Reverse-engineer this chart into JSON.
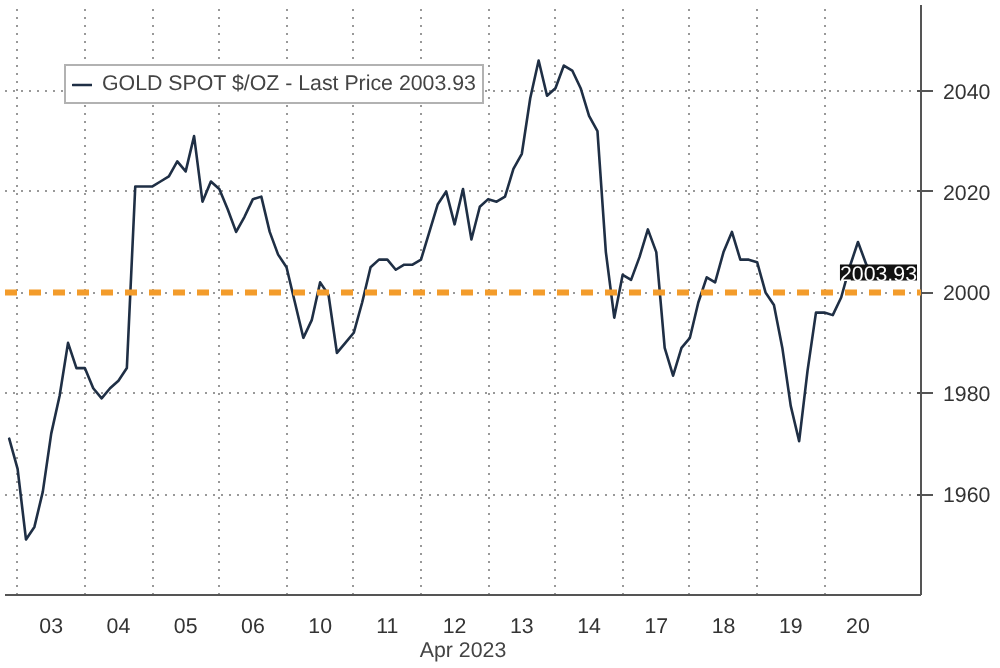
{
  "chart_data": {
    "type": "line",
    "xlabel": "Apr 2023",
    "categories": [
      null,
      null,
      null,
      null,
      null,
      "03",
      null,
      null,
      null,
      null,
      null,
      null,
      null,
      "04",
      null,
      null,
      null,
      null,
      null,
      null,
      null,
      "05",
      null,
      null,
      null,
      null,
      null,
      null,
      null,
      "06",
      null,
      null,
      null,
      null,
      null,
      null,
      null,
      "10",
      null,
      null,
      null,
      null,
      null,
      null,
      null,
      "11",
      null,
      null,
      null,
      null,
      null,
      null,
      null,
      "12",
      null,
      null,
      null,
      null,
      null,
      null,
      null,
      "13",
      null,
      null,
      null,
      null,
      null,
      null,
      null,
      "14",
      null,
      null,
      null,
      null,
      null,
      null,
      null,
      "17",
      null,
      null,
      null,
      null,
      null,
      null,
      null,
      "18",
      null,
      null,
      null,
      null,
      null,
      null,
      null,
      "19",
      null,
      null,
      null,
      null,
      null,
      null,
      null,
      "20",
      null,
      null,
      null,
      null,
      null,
      null,
      null
    ],
    "series": [
      {
        "name": "GOLD SPOT $/OZ - Last Price 2003.93",
        "color": "#1f2f45",
        "values": [
          1971,
          1965,
          1951,
          1953.5,
          1960.5,
          1972,
          1979.5,
          1990,
          1985,
          1985,
          1981,
          1979,
          1981,
          1982.5,
          1985,
          2021,
          2021,
          2021,
          2022,
          2023,
          2026,
          2024,
          2031,
          2018,
          2022,
          2020.5,
          2016.5,
          2012,
          2015,
          2018.5,
          2019,
          2012,
          2007.5,
          2005,
          1998,
          1991,
          1994.5,
          2002,
          1999.5,
          1988,
          1990,
          1992,
          1998,
          2005,
          2006.5,
          2006.5,
          2004.5,
          2005.5,
          2005.5,
          2006.5,
          2012,
          2017.5,
          2020,
          2013.5,
          2020.5,
          2010.5,
          2017,
          2018.5,
          2018,
          2019,
          2024.5,
          2027.5,
          2038.5,
          2046,
          2039,
          2040.5,
          2045,
          2044,
          2040.5,
          2035,
          2032,
          2008,
          1995,
          2003.5,
          2002.5,
          2007,
          2012.5,
          2008,
          1989,
          1983.5,
          1989,
          1991,
          1998,
          2003,
          2002,
          2008,
          2012,
          2006.5,
          2006.5,
          2006,
          2000,
          1997.5,
          1989,
          1977.5,
          1970.5,
          1984.5,
          1996,
          1996,
          1995.5,
          1999,
          2005,
          2010,
          2005.5,
          2003.5,
          2004,
          null,
          null,
          null,
          null
        ]
      }
    ],
    "ylim": [
      1940,
      2057
    ],
    "yticks": [
      1960,
      1980,
      2000,
      2020,
      2040
    ],
    "ref_lines": [
      {
        "axis": "y",
        "value": 2000,
        "label": null,
        "color": "#f39c2b",
        "line_style": "dashed"
      }
    ],
    "annotations": [
      {
        "text": "2003.93",
        "y": 2003.93
      }
    ],
    "grid": true,
    "legend": "top left",
    "line_style": "solid"
  }
}
